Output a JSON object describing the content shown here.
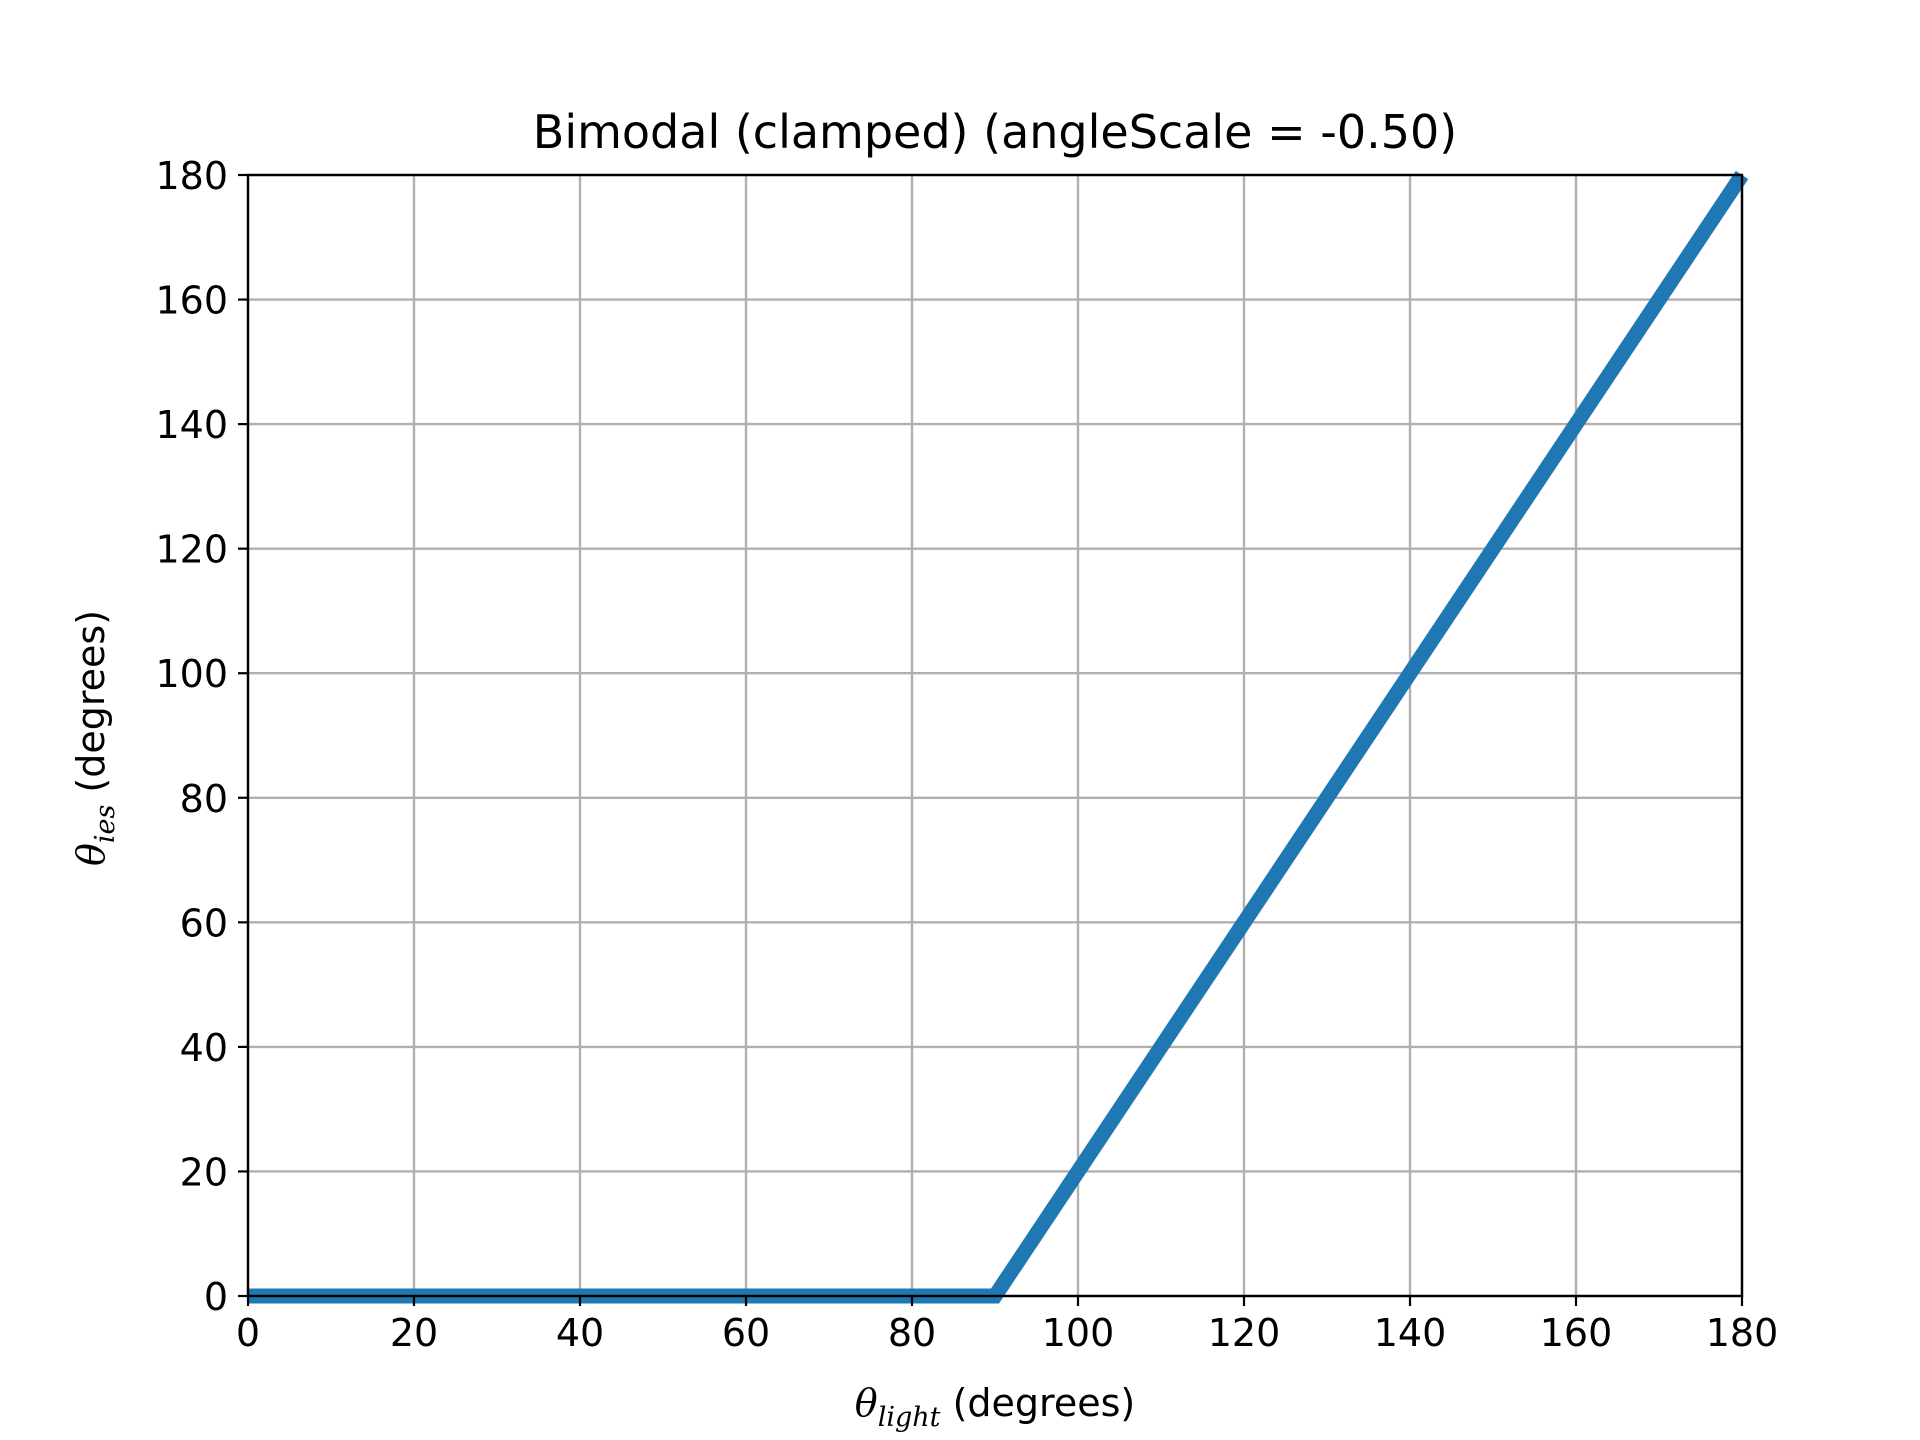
{
  "chart_data": {
    "type": "line",
    "title": "Bimodal (clamped) (angleScale = -0.50)",
    "xlabel": {
      "symbol": "θ",
      "subscript": "light",
      "unit": "(degrees)"
    },
    "ylabel": {
      "symbol": "θ",
      "subscript": "ies",
      "unit": "(degrees)"
    },
    "xlim": [
      0,
      180
    ],
    "ylim": [
      0,
      180
    ],
    "xticks": [
      0,
      20,
      40,
      60,
      80,
      100,
      120,
      140,
      160,
      180
    ],
    "yticks": [
      0,
      20,
      40,
      60,
      80,
      100,
      120,
      140,
      160,
      180
    ],
    "grid": true,
    "series": [
      {
        "color": "#1f77b4",
        "x": [
          0,
          90,
          180
        ],
        "y": [
          0,
          0,
          180
        ]
      }
    ]
  }
}
